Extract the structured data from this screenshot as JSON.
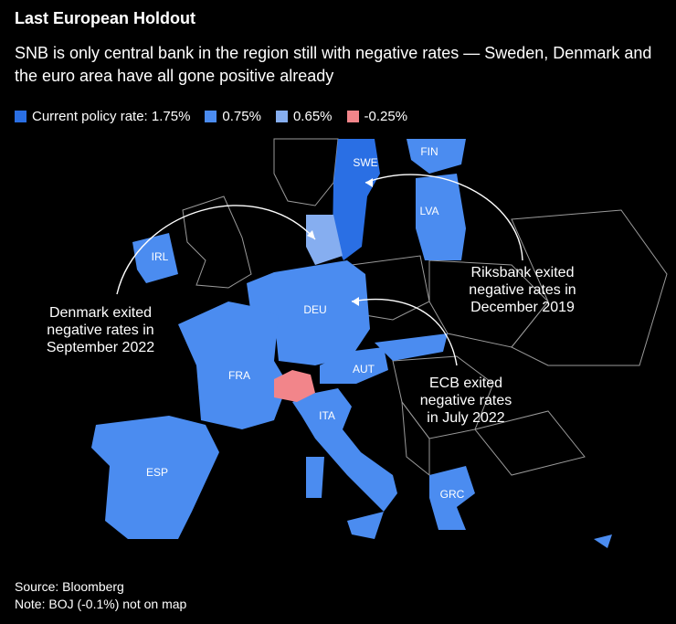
{
  "header": {
    "title": "Last European Holdout",
    "subtitle": "SNB is only central bank in the region still with negative rates — Sweden, Denmark and the euro area have all gone positive already"
  },
  "legend": [
    {
      "label": "Current policy rate: 1.75%",
      "color": "#2a6fe4"
    },
    {
      "label": "0.75%",
      "color": "#4b8cf0"
    },
    {
      "label": "0.65%",
      "color": "#86aef0"
    },
    {
      "label": "-0.25%",
      "color": "#f2858a"
    }
  ],
  "countries": [
    {
      "label": "SWE",
      "color": "#2a6fe4"
    },
    {
      "label": "FIN",
      "color": "#4b8cf0"
    },
    {
      "label": "LVA",
      "color": "#4b8cf0"
    },
    {
      "label": "IRL",
      "color": "#4b8cf0"
    },
    {
      "label": "DEU",
      "color": "#4b8cf0"
    },
    {
      "label": "FRA",
      "color": "#4b8cf0"
    },
    {
      "label": "AUT",
      "color": "#4b8cf0"
    },
    {
      "label": "ITA",
      "color": "#4b8cf0"
    },
    {
      "label": "ESP",
      "color": "#4b8cf0"
    },
    {
      "label": "GRC",
      "color": "#4b8cf0"
    }
  ],
  "denmark_color": "#86aef0",
  "switzerland_color": "#f2858a",
  "annotations": [
    {
      "lines": [
        "Denmark exited",
        "negative rates in",
        "September 2022"
      ]
    },
    {
      "lines": [
        "Riksbank exited",
        "negative rates in",
        "December 2019"
      ]
    },
    {
      "lines": [
        "ECB exited",
        "negative rates",
        "in July 2022"
      ]
    }
  ],
  "footer": {
    "source": "Source: Bloomberg",
    "note": "Note: BOJ (-0.1%) not on map"
  }
}
